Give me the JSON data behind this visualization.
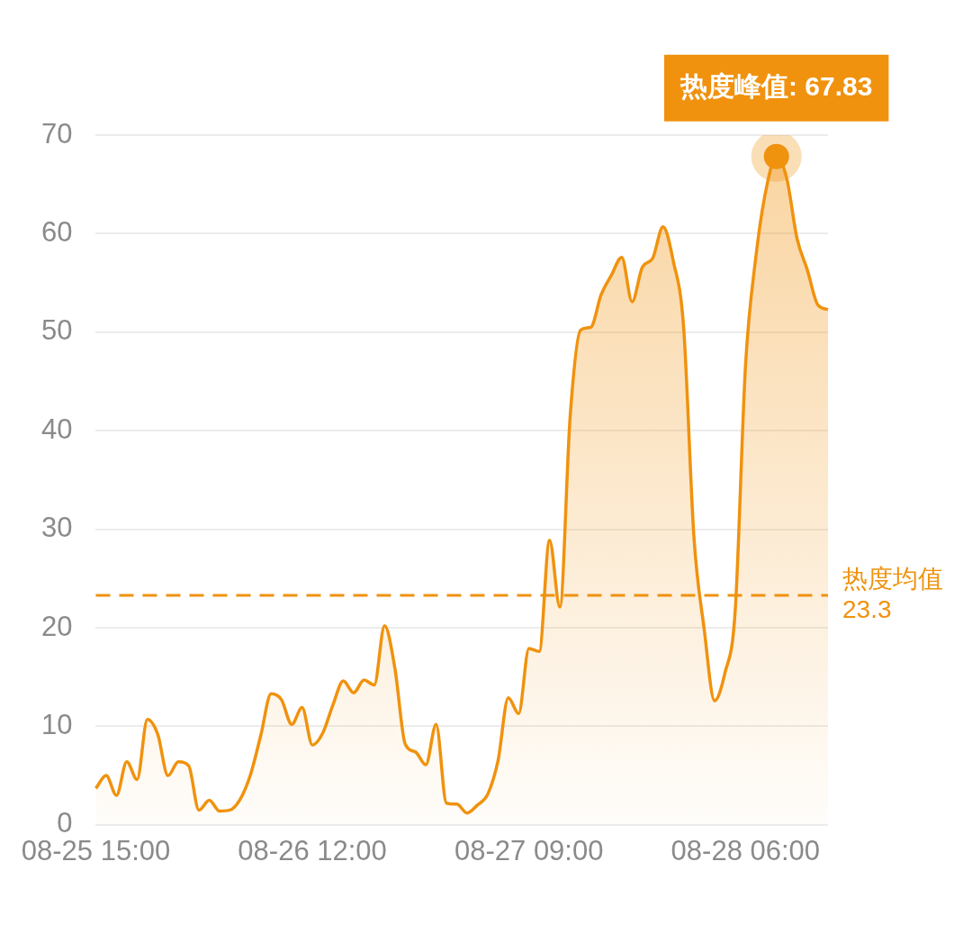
{
  "chart_data": {
    "type": "area",
    "categories": [
      "08-25 15:00",
      null,
      null,
      null,
      null,
      null,
      null,
      null,
      null,
      null,
      null,
      null,
      null,
      null,
      null,
      null,
      null,
      null,
      null,
      null,
      null,
      "08-26 12:00",
      null,
      null,
      null,
      null,
      null,
      null,
      null,
      null,
      null,
      null,
      null,
      null,
      null,
      null,
      null,
      null,
      null,
      null,
      null,
      null,
      "08-27 09:00",
      null,
      null,
      null,
      null,
      null,
      null,
      null,
      null,
      null,
      null,
      null,
      null,
      null,
      null,
      null,
      null,
      null,
      null,
      null,
      null,
      "08-28 06:00",
      null,
      null,
      null,
      null,
      null,
      null,
      null,
      null
    ],
    "series": [
      {
        "color": "#f0920e",
        "marker": "none",
        "values": [
          3.7,
          5.0,
          3.0,
          6.4,
          4.6,
          10.7,
          9.2,
          5.0,
          6.4,
          6.0,
          1.5,
          2.5,
          1.4,
          1.5,
          2.6,
          5.1,
          9.1,
          13.3,
          12.7,
          10.2,
          11.9,
          8.1,
          9.3,
          12.2,
          14.6,
          13.4,
          14.7,
          14.2,
          20.2,
          15.9,
          8.2,
          7.4,
          6.1,
          10.2,
          2.2,
          2.1,
          1.2,
          2.0,
          3.1,
          6.5,
          12.9,
          11.3,
          17.9,
          17.6,
          28.9,
          22.1,
          41.5,
          50.2,
          50.5,
          53.8,
          55.8,
          57.6,
          53.1,
          56.6,
          57.5,
          60.7,
          57.2,
          50.5,
          29.2,
          19.8,
          12.6,
          15.4,
          21.7,
          46.6,
          57.6,
          64.5,
          67.83,
          65.6,
          59.5,
          56.3,
          52.8,
          52.3
        ]
      },
      {
        "type": "scatter",
        "color": "#f0920e",
        "marker": "circle",
        "values": [
          null,
          null,
          null,
          null,
          null,
          null,
          null,
          null,
          null,
          null,
          null,
          null,
          null,
          null,
          null,
          null,
          null,
          null,
          null,
          null,
          null,
          null,
          null,
          null,
          null,
          null,
          null,
          null,
          null,
          null,
          null,
          null,
          null,
          null,
          null,
          null,
          null,
          null,
          null,
          null,
          null,
          null,
          null,
          null,
          null,
          null,
          null,
          null,
          null,
          null,
          null,
          null,
          null,
          null,
          null,
          null,
          null,
          null,
          null,
          null,
          null,
          null,
          null,
          null,
          null,
          null,
          67.83,
          null,
          null,
          null,
          null,
          null
        ]
      }
    ],
    "ylim": [
      0,
      70
    ],
    "yticks": [
      0,
      10,
      20,
      30,
      40,
      50,
      60,
      70
    ],
    "grid": "y",
    "legend": false,
    "line_style": "solid",
    "ref_lines": [
      {
        "axis": "y",
        "value": 23.3,
        "label": "热度均值\n23.3",
        "color": "#f0920e",
        "line_style": "dashed"
      }
    ],
    "annotations": [
      {
        "text": "热度峰值: 67.83",
        "y": 67.83
      }
    ]
  }
}
